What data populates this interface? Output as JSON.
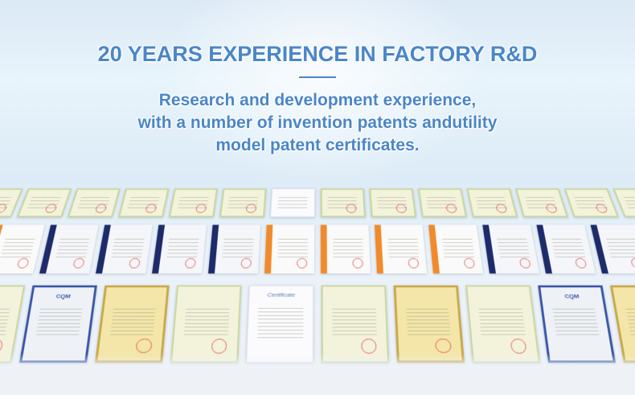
{
  "header": {
    "title": "20 YEARS EXPERIENCE IN FACTORY R&D",
    "subtitle_lines": [
      "Research and development experience,",
      "with a number of invention patents andutility",
      "model patent certificates."
    ]
  },
  "colors": {
    "text": "#4a86c8",
    "cqm_border": "#3956a6",
    "gold": "#c9a94a",
    "orange_stripe": "#f08a2a",
    "navy_stripe": "#1e2b6a"
  },
  "certificates": {
    "logos": {
      "cqm": "CQM",
      "white": "Certificate"
    },
    "rows": [
      [
        "patent",
        "patent",
        "patent",
        "patent",
        "patent",
        "patent",
        "white",
        "patent",
        "patent",
        "patent",
        "patent",
        "patent",
        "patent",
        "patent"
      ],
      [
        "orange",
        "navy",
        "navy",
        "navy",
        "navy",
        "orange",
        "orange",
        "orange",
        "orange",
        "navy",
        "navy",
        "navy"
      ],
      [
        "patent",
        "cqm",
        "gold",
        "patent",
        "white",
        "patent",
        "gold",
        "patent",
        "cqm",
        "gold"
      ]
    ]
  }
}
